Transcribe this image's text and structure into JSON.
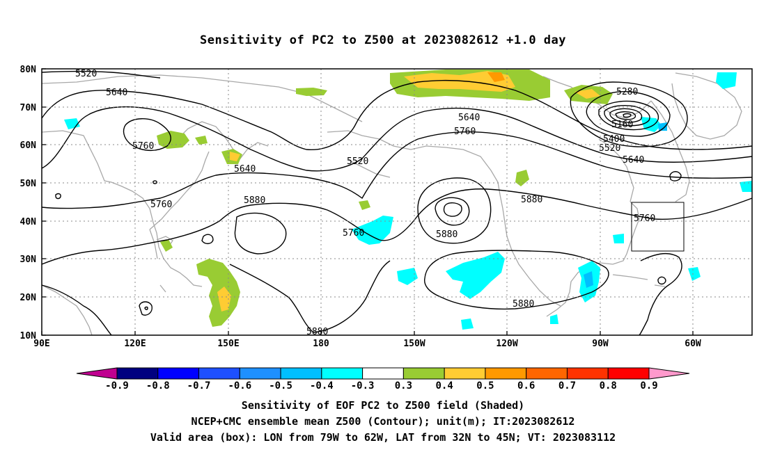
{
  "title": "Sensitivity of PC2 to Z500 at 2023082612 +1.0 day",
  "map": {
    "lat_ticks": [
      "80N",
      "70N",
      "60N",
      "50N",
      "40N",
      "30N",
      "20N",
      "10N"
    ],
    "lon_ticks": [
      "90E",
      "120E",
      "150E",
      "180",
      "150W",
      "120W",
      "90W",
      "60W"
    ],
    "valid_box": {
      "lon_min": -79,
      "lon_max": -62,
      "lat_min": 32,
      "lat_max": 45
    }
  },
  "contours": {
    "labels": [
      "5520",
      "5640",
      "5760",
      "5640",
      "5520",
      "5880",
      "5760",
      "5640",
      "5760",
      "5760",
      "5880",
      "5880",
      "5880",
      "5880",
      "5280",
      "5160",
      "5400",
      "5520",
      "5640",
      "5760"
    ]
  },
  "colorbar": {
    "labels": [
      "-0.9",
      "-0.8",
      "-0.7",
      "-0.6",
      "-0.5",
      "-0.4",
      "-0.3",
      "0.3",
      "0.4",
      "0.5",
      "0.6",
      "0.7",
      "0.8",
      "0.9"
    ],
    "colors": [
      "#000080",
      "#0000ff",
      "#1e50ff",
      "#1e90ff",
      "#00bfff",
      "#00ffff",
      "#ffffff",
      "#99cc33",
      "#ffcc33",
      "#ff9900",
      "#ff6600",
      "#ff3300",
      "#ff0000"
    ],
    "low_extend_color": "#c00090",
    "high_extend_color": "#ff99cc"
  },
  "caption": {
    "line1": "Sensitivity of EOF PC2 to Z500 field (Shaded)",
    "line2": "NCEP+CMC ensemble mean Z500 (Contour); unit(m); IT:2023082612",
    "line3": "Valid area (box): LON from 79W to 62W, LAT from 32N to 45N; VT: 2023083112"
  }
}
